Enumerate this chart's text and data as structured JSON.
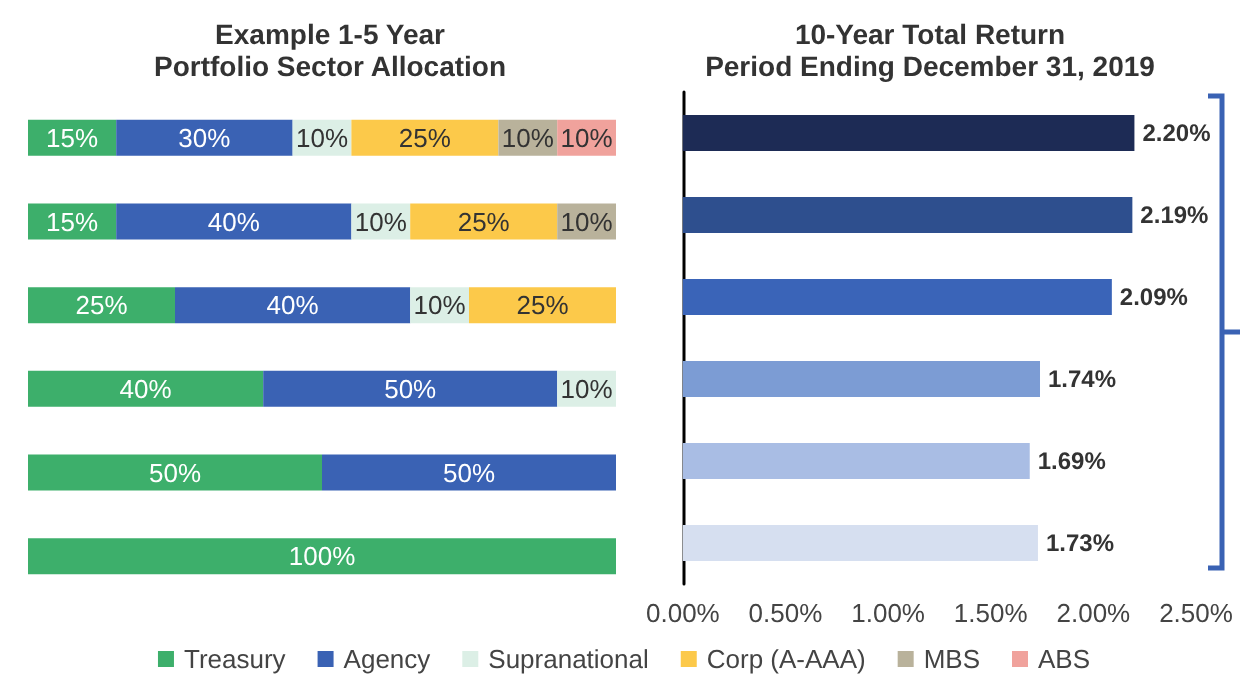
{
  "chart_data": [
    {
      "type": "bar",
      "title": "Example 1-5 Year\nPortfolio Sector Allocation",
      "orientation": "horizontal",
      "stacked": true,
      "legend": "bottom",
      "categories": [
        null,
        null,
        null,
        null,
        null,
        null
      ],
      "series": [
        {
          "name": "Treasury",
          "color": "#3daf6b",
          "values": [
            15,
            15,
            25,
            40,
            50,
            100
          ],
          "value_labels": [
            "15%",
            "15%",
            "25%",
            "40%",
            "50%",
            "100%"
          ]
        },
        {
          "name": "Agency",
          "color": "#3a62b4",
          "values": [
            30,
            40,
            40,
            50,
            50,
            null
          ],
          "value_labels": [
            "30%",
            "40%",
            "40%",
            "50%",
            "50%",
            null
          ]
        },
        {
          "name": "Supranational",
          "color": "#dcefe6",
          "values": [
            10,
            10,
            10,
            10,
            null,
            null
          ],
          "value_labels": [
            "10%",
            "10%",
            "10%",
            "10%",
            null,
            null
          ]
        },
        {
          "name": "Corp (A-AAA)",
          "color": "#fcc94a",
          "values": [
            25,
            25,
            25,
            null,
            null,
            null
          ],
          "value_labels": [
            "25%",
            "25%",
            "25%",
            null,
            null,
            null
          ]
        },
        {
          "name": "MBS",
          "color": "#b9b29b",
          "values": [
            10,
            10,
            null,
            null,
            null,
            null
          ],
          "value_labels": [
            "10%",
            "10%",
            null,
            null,
            null,
            null
          ]
        },
        {
          "name": "ABS",
          "color": "#f0a29c",
          "values": [
            10,
            null,
            null,
            null,
            null,
            null
          ],
          "value_labels": [
            "10%",
            null,
            null,
            null,
            null,
            null
          ]
        }
      ]
    },
    {
      "type": "bar",
      "title": "10-Year Total Return\nPeriod Ending December 31, 2019",
      "orientation": "horizontal",
      "categories": [
        null,
        null,
        null,
        null,
        null,
        null
      ],
      "values": [
        2.2,
        2.19,
        2.09,
        1.74,
        1.69,
        1.73
      ],
      "colors": [
        "#1d2b55",
        "#2e4f8e",
        "#3a64b8",
        "#7c9cd4",
        "#a9bde4",
        "#d6dff0"
      ],
      "value_labels": [
        "2.20%",
        "2.19%",
        "2.09%",
        "1.74%",
        "1.69%",
        "1.73%"
      ],
      "xlim": [
        0,
        2.5
      ],
      "xticks": [
        {
          "value": 0,
          "label": "0.00%"
        },
        {
          "value": 0.5,
          "label": "0.50%"
        },
        {
          "value": 1,
          "label": "1.00%"
        },
        {
          "value": 1.5,
          "label": "1.50%"
        },
        {
          "value": 2,
          "label": "2.00%"
        },
        {
          "value": 2.5,
          "label": "2.50%"
        }
      ],
      "tick_labels": "x"
    }
  ]
}
